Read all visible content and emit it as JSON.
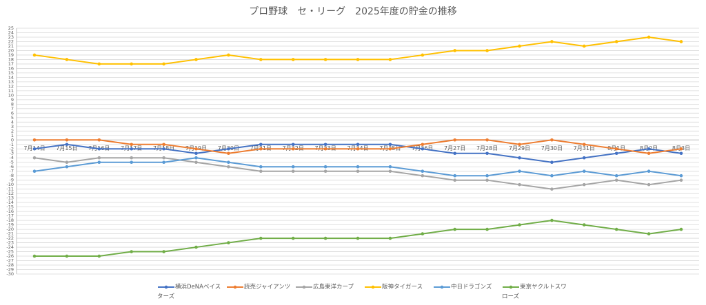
{
  "chart_data": {
    "type": "line",
    "title": "プロ野球　セ・リーグ　2025年度の貯金の推移",
    "categories": [
      "7月14日",
      "7月15日",
      "7月16日",
      "7月17日",
      "7月18日",
      "7月19日",
      "7月20日",
      "7月21日",
      "7月22日",
      "7月23日",
      "7月24日",
      "7月25日",
      "7月26日",
      "7月27日",
      "7月28日",
      "7月29日",
      "7月30日",
      "7月31日",
      "8月1日",
      "8月2日",
      "8月3日"
    ],
    "series": [
      {
        "name": "横浜DeNAベイスターズ",
        "color": "#4472c4",
        "values": [
          -2,
          -1,
          -2,
          -2,
          -2,
          -3,
          -2,
          -1,
          -1,
          -1,
          -1,
          -1,
          -2,
          -3,
          -3,
          -4,
          -5,
          -4,
          -3,
          -2,
          -3
        ]
      },
      {
        "name": "読売ジャイアンツ",
        "color": "#ed7d31",
        "values": [
          0,
          0,
          0,
          -1,
          -1,
          -2,
          -3,
          -2,
          -2,
          -2,
          -2,
          -2,
          -1,
          0,
          0,
          -1,
          0,
          -1,
          -2,
          -3,
          -2
        ]
      },
      {
        "name": "広島東洋カープ",
        "color": "#a5a5a5",
        "values": [
          -4,
          -5,
          -4,
          -4,
          -4,
          -5,
          -6,
          -7,
          -7,
          -7,
          -7,
          -7,
          -8,
          -9,
          -9,
          -10,
          -11,
          -10,
          -9,
          -10,
          -9
        ]
      },
      {
        "name": "阪神タイガース",
        "color": "#ffc000",
        "values": [
          19,
          18,
          17,
          17,
          17,
          18,
          19,
          18,
          18,
          18,
          18,
          18,
          19,
          20,
          20,
          21,
          22,
          21,
          22,
          23,
          22
        ]
      },
      {
        "name": "中日ドラゴンズ",
        "color": "#5b9bd5",
        "values": [
          -7,
          -6,
          -5,
          -5,
          -5,
          -4,
          -5,
          -6,
          -6,
          -6,
          -6,
          -6,
          -7,
          -8,
          -8,
          -7,
          -8,
          -7,
          -8,
          -7,
          -8
        ]
      },
      {
        "name": "東京ヤクルトスワローズ",
        "color": "#70ad47",
        "values": [
          -26,
          -26,
          -26,
          -25,
          -25,
          -24,
          -23,
          -22,
          -22,
          -22,
          -22,
          -22,
          -21,
          -20,
          -20,
          -19,
          -18,
          -19,
          -20,
          -21,
          -20
        ]
      }
    ],
    "ylim": [
      -30,
      25
    ],
    "yticks": [
      25,
      24,
      23,
      22,
      21,
      20,
      19,
      18,
      17,
      16,
      15,
      14,
      13,
      12,
      11,
      10,
      9,
      8,
      7,
      6,
      5,
      4,
      3,
      2,
      1,
      0,
      -1,
      -2,
      -3,
      -4,
      -5,
      -6,
      -7,
      -8,
      -9,
      -10,
      -11,
      -12,
      -13,
      -14,
      -15,
      -16,
      -17,
      -18,
      -19,
      -20,
      -21,
      -22,
      -23,
      -24,
      -25,
      -26,
      -27,
      -28,
      -29,
      -30
    ],
    "grid": true,
    "legend": "bottom"
  }
}
